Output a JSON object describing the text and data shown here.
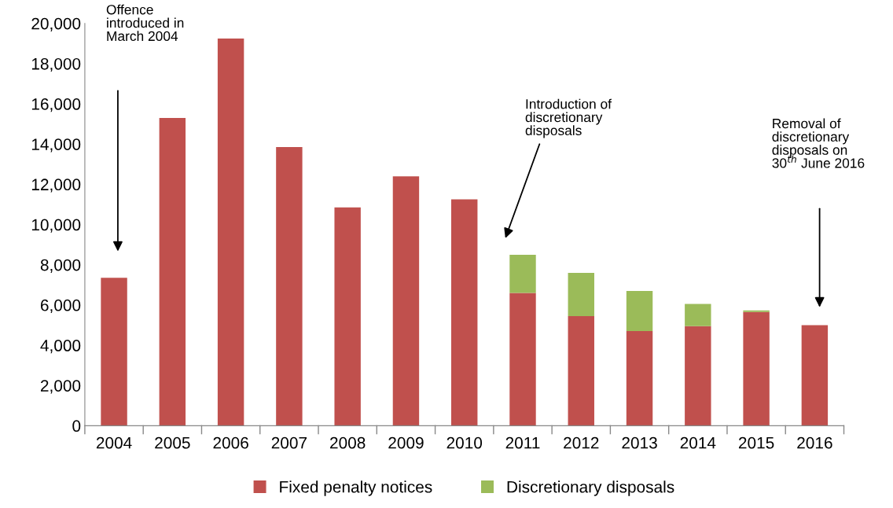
{
  "chart_data": {
    "type": "bar",
    "stacked": true,
    "categories": [
      "2004",
      "2005",
      "2006",
      "2007",
      "2008",
      "2009",
      "2010",
      "2011",
      "2012",
      "2013",
      "2014",
      "2015",
      "2016"
    ],
    "series": [
      {
        "name": "Fixed penalty notices",
        "color": "#c0504d",
        "values": [
          7350,
          15300,
          19250,
          13850,
          10850,
          12400,
          11250,
          6600,
          5450,
          4700,
          4950,
          5650,
          5000
        ]
      },
      {
        "name": "Discretionary disposals",
        "color": "#9bbb59",
        "values": [
          null,
          null,
          null,
          null,
          null,
          null,
          null,
          1900,
          2150,
          2000,
          1100,
          80,
          null
        ]
      }
    ],
    "ylim": [
      0,
      20000
    ],
    "yticks": [
      {
        "value": 0,
        "label": "0"
      },
      {
        "value": 2000,
        "label": "2,000"
      },
      {
        "value": 4000,
        "label": "4,000"
      },
      {
        "value": 6000,
        "label": "6,000"
      },
      {
        "value": 8000,
        "label": "8,000"
      },
      {
        "value": 10000,
        "label": "10,000"
      },
      {
        "value": 12000,
        "label": "12,000"
      },
      {
        "value": 14000,
        "label": "14,000"
      },
      {
        "value": 16000,
        "label": "16,000"
      },
      {
        "value": 18000,
        "label": "18,000"
      },
      {
        "value": 20000,
        "label": "20,000"
      }
    ],
    "grid": false,
    "legend": "bottom",
    "annotations": [
      "Offence\nintroduced in\nMarch 2004",
      "Introduction of\ndiscretionary\ndisposals",
      "Removal of\ndiscretionary\ndisposals on\n30$^{th}$ June 2016"
    ]
  }
}
